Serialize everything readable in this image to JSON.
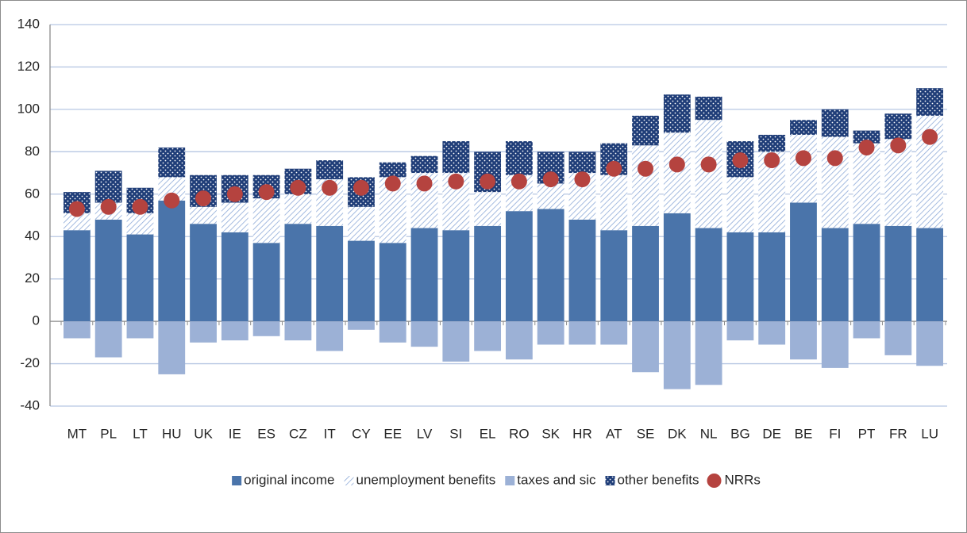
{
  "chart_data": {
    "type": "bar",
    "stacked": true,
    "categories": [
      "MT",
      "PL",
      "LT",
      "HU",
      "UK",
      "IE",
      "ES",
      "CZ",
      "IT",
      "CY",
      "EE",
      "LV",
      "SI",
      "EL",
      "RO",
      "SK",
      "HR",
      "AT",
      "SE",
      "DK",
      "NL",
      "BG",
      "DE",
      "BE",
      "FI",
      "PT",
      "FR",
      "LU"
    ],
    "series": [
      {
        "name": "original income",
        "color": "#4a74aa",
        "pattern": "solid",
        "values": [
          43,
          48,
          41,
          57,
          46,
          42,
          37,
          46,
          45,
          38,
          37,
          44,
          43,
          45,
          52,
          53,
          48,
          43,
          45,
          51,
          44,
          42,
          42,
          56,
          44,
          46,
          45,
          44
        ]
      },
      {
        "name": "unemployment benefits",
        "color": "#8eaad8",
        "pattern": "hatch",
        "values": [
          8,
          8,
          10,
          11,
          8,
          14,
          21,
          14,
          22,
          16,
          31,
          26,
          27,
          16,
          17,
          12,
          22,
          26,
          38,
          38,
          51,
          26,
          38,
          32,
          43,
          38,
          41,
          53
        ]
      },
      {
        "name": "taxes and sic",
        "color": "#9cb1d6",
        "pattern": "solid",
        "values": [
          -8,
          -17,
          -8,
          -25,
          -10,
          -9,
          -7,
          -9,
          -14,
          -4,
          -10,
          -12,
          -19,
          -14,
          -18,
          -11,
          -11,
          -11,
          -24,
          -32,
          -30,
          -9,
          -11,
          -18,
          -22,
          -8,
          -16,
          -21
        ]
      },
      {
        "name": "other benefits",
        "color": "#1f3d78",
        "pattern": "dots",
        "values": [
          10,
          15,
          12,
          14,
          15,
          13,
          11,
          12,
          9,
          14,
          7,
          8,
          15,
          19,
          16,
          15,
          10,
          15,
          14,
          18,
          11,
          17,
          8,
          7,
          13,
          6,
          12,
          13
        ]
      },
      {
        "name": "NRRs",
        "color": "#b5433f",
        "type": "scatter",
        "values": [
          53,
          54,
          54,
          57,
          58,
          60,
          61,
          63,
          63,
          63,
          65,
          65,
          66,
          66,
          66,
          67,
          67,
          72,
          72,
          74,
          74,
          76,
          76,
          77,
          77,
          82,
          83,
          87
        ]
      }
    ],
    "ylim": [
      -40,
      140
    ],
    "yticks": [
      -40,
      -20,
      0,
      20,
      40,
      60,
      80,
      100,
      120,
      140
    ],
    "grid": true
  }
}
